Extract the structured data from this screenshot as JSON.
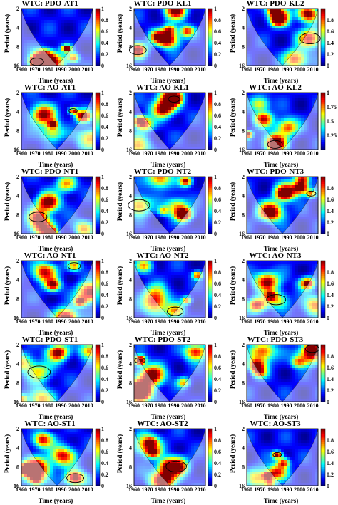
{
  "figure": {
    "y_axis_label": "Period (years)",
    "x_axis_label": "Time (years)"
  },
  "chart_data": [
    {
      "type": "heatmap",
      "title": "WTC: PDO-AT1",
      "xticks": [
        "1960",
        "1970",
        "1980",
        "1990",
        "2000",
        "2010"
      ],
      "yticks": [
        "2",
        "4",
        "8",
        "16"
      ],
      "colorbar_ticks": [
        "0",
        "0.2",
        "0.4",
        "0.6",
        "0.8",
        "1"
      ],
      "xlim": [
        1960,
        2014
      ],
      "ylim": [
        2,
        16
      ],
      "zlim": [
        0,
        1
      ]
    },
    {
      "type": "heatmap",
      "title": "WTC: PDO-KL1",
      "xticks": [
        "1960",
        "1970",
        "1980",
        "1990",
        "2000",
        "2010"
      ],
      "yticks": [
        "2",
        "4",
        "8",
        "16"
      ],
      "colorbar_ticks": [
        "0",
        "0.2",
        "0.4",
        "0.6",
        "0.8",
        "1"
      ],
      "xlim": [
        1960,
        2014
      ],
      "ylim": [
        2,
        16
      ],
      "zlim": [
        0,
        1
      ]
    },
    {
      "type": "heatmap",
      "title": "WTC: PDO-KL2",
      "xticks": [
        "1960",
        "1970",
        "1980",
        "1990",
        "2000",
        "2010"
      ],
      "yticks": [
        "2",
        "4",
        "8",
        "16"
      ],
      "colorbar_ticks": [
        "0",
        "0.2",
        "0.4",
        "0.6",
        "0.8"
      ],
      "xlim": [
        1960,
        2014
      ],
      "ylim": [
        2,
        16
      ],
      "zlim": [
        0,
        1
      ]
    },
    {
      "type": "heatmap",
      "title": "WTC: AO-AT1",
      "xticks": [
        "1960",
        "1970",
        "1980",
        "1990",
        "2000",
        "2010"
      ],
      "yticks": [
        "2",
        "4",
        "8",
        "16"
      ],
      "colorbar_ticks": [
        "0",
        "0.2",
        "0.4",
        "0.6",
        "0.8",
        "1"
      ],
      "xlim": [
        1960,
        2014
      ],
      "ylim": [
        2,
        16
      ],
      "zlim": [
        0,
        1
      ]
    },
    {
      "type": "heatmap",
      "title": "WTC: AO-KL1",
      "xticks": [
        "1960",
        "1970",
        "1980",
        "1990",
        "2000",
        "2010"
      ],
      "yticks": [
        "2",
        "4",
        "8",
        "16"
      ],
      "colorbar_ticks": [
        "0",
        "0.2",
        "0.4",
        "0.6",
        "0.8",
        "1"
      ],
      "xlim": [
        1960,
        2014
      ],
      "ylim": [
        2,
        16
      ],
      "zlim": [
        0,
        1
      ]
    },
    {
      "type": "heatmap",
      "title": "WTC: AO-KL2",
      "xticks": [
        "1960",
        "1970",
        "1980",
        "1990",
        "2000",
        "2010"
      ],
      "yticks": [
        "2",
        "4",
        "8",
        "16"
      ],
      "colorbar_ticks": [
        "0.25",
        "0.5",
        "0.75",
        "1"
      ],
      "xlim": [
        1960,
        2014
      ],
      "ylim": [
        2,
        16
      ],
      "zlim": [
        0,
        1
      ]
    },
    {
      "type": "heatmap",
      "title": "WTC: PDO-NT1",
      "xticks": [
        "1960",
        "1970",
        "1980",
        "1990",
        "2000",
        "2010"
      ],
      "yticks": [
        "2",
        "4",
        "8",
        "16"
      ],
      "colorbar_ticks": [
        "0",
        "0.2",
        "0.4",
        "0.6",
        "0.8",
        "1"
      ],
      "xlim": [
        1960,
        2014
      ],
      "ylim": [
        2,
        16
      ],
      "zlim": [
        0,
        1
      ]
    },
    {
      "type": "heatmap",
      "title": "WTC: PDO-NT2",
      "xticks": [
        "1960",
        "1970",
        "1980",
        "1990",
        "2000",
        "2010"
      ],
      "yticks": [
        "2",
        "4",
        "8",
        "16"
      ],
      "colorbar_ticks": [
        "0",
        "0.2",
        "0.4",
        "0.6",
        "0.8",
        "1"
      ],
      "xlim": [
        1960,
        2014
      ],
      "ylim": [
        2,
        16
      ],
      "zlim": [
        0,
        1
      ]
    },
    {
      "type": "heatmap",
      "title": "WTC: PDO-NT3",
      "xticks": [
        "1960",
        "1970",
        "1980",
        "1990",
        "2000",
        "2010"
      ],
      "yticks": [
        "2",
        "4",
        "8",
        "16"
      ],
      "colorbar_ticks": [
        "0",
        "0.2",
        "0.4",
        "0.6",
        "0.8"
      ],
      "xlim": [
        1960,
        2014
      ],
      "ylim": [
        2,
        16
      ],
      "zlim": [
        0,
        1
      ]
    },
    {
      "type": "heatmap",
      "title": "WTC: AO-NT1",
      "xticks": [
        "1960",
        "1970",
        "1980",
        "1990",
        "2000",
        "2010"
      ],
      "yticks": [
        "2",
        "4",
        "8",
        "16"
      ],
      "colorbar_ticks": [
        "0",
        "0.2",
        "0.4",
        "0.6",
        "0.8",
        "1"
      ],
      "xlim": [
        1960,
        2014
      ],
      "ylim": [
        2,
        16
      ],
      "zlim": [
        0,
        1
      ]
    },
    {
      "type": "heatmap",
      "title": "WTC: AO-NT2",
      "xticks": [
        "1960",
        "1970",
        "1980",
        "1990",
        "2000",
        "2010"
      ],
      "yticks": [
        "2",
        "4",
        "8",
        "16"
      ],
      "colorbar_ticks": [
        "0",
        "0.2",
        "0.4",
        "0.6",
        "0.8",
        "1"
      ],
      "xlim": [
        1960,
        2014
      ],
      "ylim": [
        2,
        16
      ],
      "zlim": [
        0,
        1
      ]
    },
    {
      "type": "heatmap",
      "title": "WTC: AO-NT3",
      "xticks": [
        "1960",
        "1970",
        "1980",
        "1990",
        "2000",
        "2010"
      ],
      "yticks": [
        "2",
        "4",
        "8",
        "16"
      ],
      "colorbar_ticks": [
        "0",
        "0.2",
        "0.4",
        "0.6",
        "0.8"
      ],
      "xlim": [
        1960,
        2014
      ],
      "ylim": [
        2,
        16
      ],
      "zlim": [
        0,
        1
      ]
    },
    {
      "type": "heatmap",
      "title": "WTC: PDO-ST1",
      "xticks": [
        "1960",
        "1970",
        "1980",
        "1990",
        "2000",
        "2010"
      ],
      "yticks": [
        "2",
        "4",
        "8",
        "16"
      ],
      "colorbar_ticks": [
        "0",
        "0.2",
        "0.4",
        "0.6",
        "0.8",
        "1"
      ],
      "xlim": [
        1960,
        2014
      ],
      "ylim": [
        2,
        16
      ],
      "zlim": [
        0,
        1
      ]
    },
    {
      "type": "heatmap",
      "title": "WTC: PDO-ST2",
      "xticks": [
        "1960",
        "1970",
        "1980",
        "1990",
        "2000",
        "2010"
      ],
      "yticks": [
        "2",
        "4",
        "8",
        "16"
      ],
      "colorbar_ticks": [
        "0",
        "0.2",
        "0.4",
        "0.6",
        "0.8",
        "1"
      ],
      "xlim": [
        1960,
        2014
      ],
      "ylim": [
        2,
        16
      ],
      "zlim": [
        0,
        1
      ]
    },
    {
      "type": "heatmap",
      "title": "WTC: PDO-ST3",
      "xticks": [
        "1960",
        "1970",
        "1980",
        "1990",
        "2000",
        "2010"
      ],
      "yticks": [
        "2",
        "4",
        "8",
        "16"
      ],
      "colorbar_ticks": [
        "0",
        "0.2",
        "0.4",
        "0.6",
        "0.8"
      ],
      "xlim": [
        1960,
        2014
      ],
      "ylim": [
        2,
        16
      ],
      "zlim": [
        0,
        1
      ]
    },
    {
      "type": "heatmap",
      "title": "WTC: AO-ST1",
      "xticks": [
        "1960",
        "1970",
        "1980",
        "1990",
        "2000",
        "2010"
      ],
      "yticks": [
        "2",
        "4",
        "8",
        "16"
      ],
      "colorbar_ticks": [
        "0",
        "0.2",
        "0.4",
        "0.6",
        "0.8",
        "1"
      ],
      "xlim": [
        1960,
        2014
      ],
      "ylim": [
        2,
        16
      ],
      "zlim": [
        0,
        1
      ]
    },
    {
      "type": "heatmap",
      "title": "WTC: AO-ST2",
      "xticks": [
        "1960",
        "1970",
        "1980",
        "1990",
        "2000",
        "2010"
      ],
      "yticks": [
        "2",
        "4",
        "8",
        "16"
      ],
      "colorbar_ticks": [
        "0",
        "0.2",
        "0.4",
        "0.6",
        "0.8",
        "1"
      ],
      "xlim": [
        1960,
        2014
      ],
      "ylim": [
        2,
        16
      ],
      "zlim": [
        0,
        1
      ]
    },
    {
      "type": "heatmap",
      "title": "WTC: AO-ST3",
      "xticks": [
        "1960",
        "1970",
        "1980",
        "1990",
        "2000",
        "2010"
      ],
      "yticks": [
        "2",
        "4",
        "8",
        "16"
      ],
      "colorbar_ticks": [
        "0",
        "0.2",
        "0.4",
        "0.6",
        "0.8"
      ],
      "xlim": [
        1960,
        2014
      ],
      "ylim": [
        2,
        16
      ],
      "zlim": [
        0,
        1
      ]
    }
  ]
}
